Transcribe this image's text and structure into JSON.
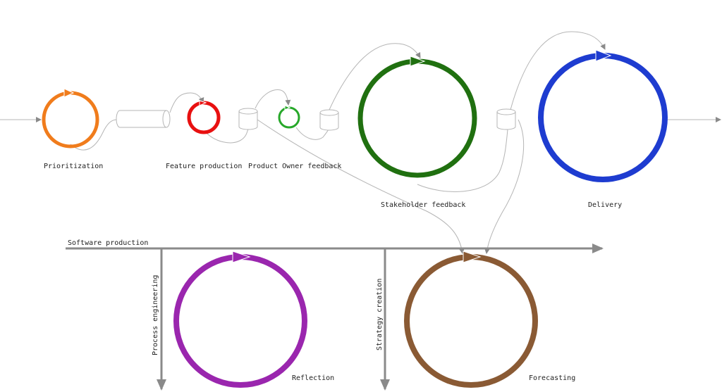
{
  "cycles": {
    "prioritization": {
      "label": "Prioritization",
      "color": "#f07c1c"
    },
    "feature_production": {
      "label": "Feature production",
      "color": "#e81010"
    },
    "product_owner_feedback": {
      "label": "Product Owner feedback",
      "color": "#27a82a"
    },
    "stakeholder_feedback": {
      "label": "Stakeholder feedback",
      "color": "#207010"
    },
    "delivery": {
      "label": "Delivery",
      "color": "#1e3cd0"
    },
    "reflection": {
      "label": "Reflection",
      "color": "#9a26ae"
    },
    "forecasting": {
      "label": "Forecasting",
      "color": "#8a5a34"
    }
  },
  "axes": {
    "software_production": "Software production",
    "process_engineering": "Process engineering",
    "strategy_creation": "Strategy creation"
  },
  "colors": {
    "flow_line": "#b5b5b5",
    "axis_line": "#8a8a8a"
  }
}
